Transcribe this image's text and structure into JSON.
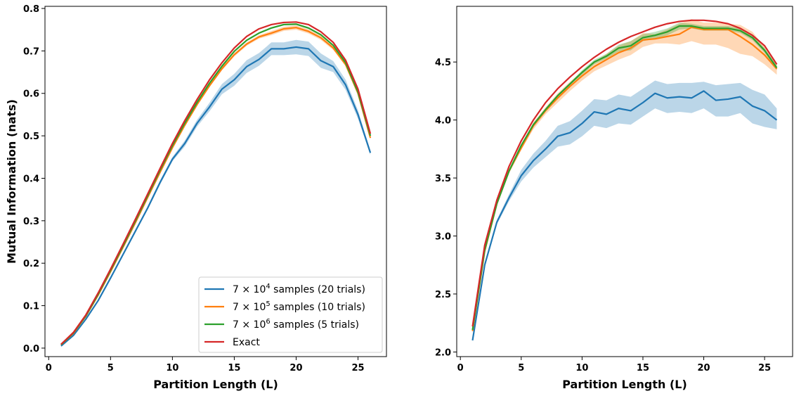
{
  "chart_data": [
    {
      "type": "line",
      "xlabel": "Partition Length (L)",
      "ylabel": "Mutual Information (nats)",
      "xlim": [
        -0.3,
        27.3
      ],
      "ylim": [
        -0.02,
        0.805
      ],
      "xticks": [
        0,
        5,
        10,
        15,
        20,
        25
      ],
      "yticks": [
        0.0,
        0.1,
        0.2,
        0.3,
        0.4,
        0.5,
        0.6,
        0.7,
        0.8
      ],
      "ytick_decimals": 1,
      "legend_position": "lower-right",
      "x": [
        1,
        2,
        3,
        4,
        5,
        6,
        7,
        8,
        9,
        10,
        11,
        12,
        13,
        14,
        15,
        16,
        17,
        18,
        19,
        20,
        21,
        22,
        23,
        24,
        25,
        26
      ],
      "series": [
        {
          "name_prefix": "7 × 10",
          "name_exp": "4",
          "name_suffix": " samples (20 trials)",
          "color": "#1f77b4",
          "values": [
            0.005,
            0.03,
            0.068,
            0.112,
            0.165,
            0.22,
            0.275,
            0.33,
            0.39,
            0.445,
            0.482,
            0.53,
            0.568,
            0.61,
            0.632,
            0.663,
            0.68,
            0.705,
            0.705,
            0.709,
            0.705,
            0.677,
            0.663,
            0.62,
            0.55,
            0.46
          ],
          "lower": [
            0.005,
            0.03,
            0.067,
            0.11,
            0.163,
            0.217,
            0.272,
            0.326,
            0.385,
            0.44,
            0.475,
            0.522,
            0.558,
            0.598,
            0.618,
            0.648,
            0.665,
            0.69,
            0.69,
            0.692,
            0.688,
            0.66,
            0.65,
            0.608,
            0.54,
            0.455
          ],
          "upper": [
            0.006,
            0.031,
            0.07,
            0.114,
            0.167,
            0.223,
            0.278,
            0.334,
            0.395,
            0.45,
            0.489,
            0.538,
            0.578,
            0.622,
            0.646,
            0.678,
            0.695,
            0.72,
            0.72,
            0.726,
            0.722,
            0.694,
            0.676,
            0.632,
            0.56,
            0.465
          ]
        },
        {
          "name_prefix": "7 × 10",
          "name_exp": "5",
          "name_suffix": " samples (10 trials)",
          "color": "#ff7f0e",
          "values": [
            0.008,
            0.035,
            0.075,
            0.125,
            0.18,
            0.237,
            0.295,
            0.355,
            0.414,
            0.472,
            0.525,
            0.574,
            0.618,
            0.658,
            0.691,
            0.716,
            0.733,
            0.742,
            0.752,
            0.755,
            0.746,
            0.731,
            0.707,
            0.668,
            0.6,
            0.495
          ],
          "lower": [
            0.008,
            0.035,
            0.074,
            0.124,
            0.179,
            0.236,
            0.294,
            0.353,
            0.412,
            0.47,
            0.522,
            0.571,
            0.615,
            0.654,
            0.687,
            0.712,
            0.729,
            0.737,
            0.747,
            0.75,
            0.741,
            0.726,
            0.702,
            0.664,
            0.596,
            0.492
          ],
          "upper": [
            0.009,
            0.036,
            0.076,
            0.126,
            0.181,
            0.238,
            0.296,
            0.357,
            0.416,
            0.474,
            0.528,
            0.577,
            0.621,
            0.662,
            0.695,
            0.72,
            0.737,
            0.747,
            0.757,
            0.76,
            0.751,
            0.736,
            0.712,
            0.672,
            0.604,
            0.498
          ]
        },
        {
          "name_prefix": "7 × 10",
          "name_exp": "6",
          "name_suffix": " samples (5 trials)",
          "color": "#2ca02c",
          "values": [
            0.008,
            0.036,
            0.076,
            0.127,
            0.183,
            0.24,
            0.299,
            0.359,
            0.419,
            0.477,
            0.53,
            0.579,
            0.624,
            0.664,
            0.699,
            0.725,
            0.742,
            0.754,
            0.762,
            0.763,
            0.754,
            0.738,
            0.713,
            0.672,
            0.603,
            0.5
          ],
          "lower": [
            0.008,
            0.036,
            0.076,
            0.126,
            0.182,
            0.239,
            0.298,
            0.358,
            0.418,
            0.476,
            0.529,
            0.578,
            0.623,
            0.663,
            0.698,
            0.723,
            0.74,
            0.752,
            0.76,
            0.761,
            0.752,
            0.736,
            0.711,
            0.67,
            0.601,
            0.498
          ],
          "upper": [
            0.009,
            0.037,
            0.077,
            0.128,
            0.184,
            0.241,
            0.3,
            0.36,
            0.42,
            0.478,
            0.531,
            0.58,
            0.625,
            0.665,
            0.7,
            0.727,
            0.744,
            0.756,
            0.764,
            0.765,
            0.756,
            0.74,
            0.715,
            0.674,
            0.605,
            0.502
          ]
        },
        {
          "name": "Exact",
          "color": "#d62728",
          "values": [
            0.009,
            0.037,
            0.078,
            0.13,
            0.186,
            0.244,
            0.303,
            0.363,
            0.423,
            0.482,
            0.536,
            0.586,
            0.632,
            0.672,
            0.707,
            0.734,
            0.752,
            0.762,
            0.767,
            0.768,
            0.762,
            0.745,
            0.72,
            0.678,
            0.61,
            0.505
          ]
        }
      ]
    },
    {
      "type": "line",
      "xlabel": "Partition Length (L)",
      "ylabel": "",
      "xlim": [
        -0.3,
        27.3
      ],
      "ylim": [
        1.96,
        4.98
      ],
      "xticks": [
        0,
        5,
        10,
        15,
        20,
        25
      ],
      "yticks": [
        2.0,
        2.5,
        3.0,
        3.5,
        4.0,
        4.5
      ],
      "ytick_decimals": 1,
      "x": [
        1,
        2,
        3,
        4,
        5,
        6,
        7,
        8,
        9,
        10,
        11,
        12,
        13,
        14,
        15,
        16,
        17,
        18,
        19,
        20,
        21,
        22,
        23,
        24,
        25,
        26
      ],
      "series": [
        {
          "color": "#1f77b4",
          "values": [
            2.1,
            2.75,
            3.12,
            3.33,
            3.52,
            3.65,
            3.75,
            3.86,
            3.89,
            3.97,
            4.07,
            4.05,
            4.1,
            4.08,
            4.15,
            4.23,
            4.19,
            4.2,
            4.19,
            4.25,
            4.17,
            4.18,
            4.2,
            4.12,
            4.08,
            4.0
          ],
          "lower": [
            2.1,
            2.74,
            3.1,
            3.3,
            3.47,
            3.59,
            3.68,
            3.77,
            3.79,
            3.86,
            3.95,
            3.93,
            3.97,
            3.96,
            4.03,
            4.1,
            4.06,
            4.07,
            4.06,
            4.1,
            4.03,
            4.03,
            4.06,
            3.97,
            3.94,
            3.92
          ],
          "upper": [
            2.11,
            2.76,
            3.14,
            3.36,
            3.57,
            3.71,
            3.82,
            3.95,
            3.99,
            4.08,
            4.18,
            4.17,
            4.22,
            4.2,
            4.27,
            4.34,
            4.31,
            4.32,
            4.32,
            4.33,
            4.3,
            4.31,
            4.32,
            4.26,
            4.22,
            4.1
          ]
        },
        {
          "color": "#ff7f0e",
          "values": [
            2.18,
            2.87,
            3.28,
            3.56,
            3.76,
            3.95,
            4.08,
            4.19,
            4.29,
            4.38,
            4.46,
            4.52,
            4.58,
            4.62,
            4.69,
            4.7,
            4.72,
            4.74,
            4.8,
            4.78,
            4.78,
            4.78,
            4.72,
            4.65,
            4.56,
            4.44
          ],
          "lower": [
            2.17,
            2.86,
            3.27,
            3.54,
            3.74,
            3.92,
            4.05,
            4.15,
            4.25,
            4.34,
            4.42,
            4.47,
            4.52,
            4.56,
            4.63,
            4.66,
            4.66,
            4.65,
            4.68,
            4.65,
            4.65,
            4.62,
            4.57,
            4.55,
            4.48,
            4.39
          ],
          "upper": [
            2.19,
            2.88,
            3.29,
            3.58,
            3.78,
            3.98,
            4.11,
            4.23,
            4.33,
            4.42,
            4.5,
            4.57,
            4.64,
            4.68,
            4.75,
            4.74,
            4.78,
            4.83,
            4.87,
            4.84,
            4.84,
            4.83,
            4.82,
            4.76,
            4.63,
            4.49
          ]
        },
        {
          "color": "#2ca02c",
          "values": [
            2.19,
            2.88,
            3.28,
            3.56,
            3.78,
            3.96,
            4.09,
            4.21,
            4.31,
            4.41,
            4.5,
            4.55,
            4.62,
            4.64,
            4.71,
            4.73,
            4.76,
            4.81,
            4.81,
            4.79,
            4.79,
            4.79,
            4.77,
            4.71,
            4.6,
            4.45
          ],
          "lower": [
            2.19,
            2.87,
            3.27,
            3.55,
            3.77,
            3.95,
            4.08,
            4.2,
            4.3,
            4.39,
            4.48,
            4.53,
            4.59,
            4.6,
            4.68,
            4.7,
            4.73,
            4.78,
            4.79,
            4.77,
            4.77,
            4.77,
            4.75,
            4.69,
            4.58,
            4.43
          ],
          "upper": [
            2.2,
            2.89,
            3.29,
            3.57,
            3.79,
            3.97,
            4.1,
            4.22,
            4.32,
            4.43,
            4.52,
            4.57,
            4.65,
            4.68,
            4.74,
            4.76,
            4.79,
            4.84,
            4.83,
            4.81,
            4.81,
            4.81,
            4.79,
            4.73,
            4.62,
            4.47
          ]
        },
        {
          "color": "#d62728",
          "values": [
            2.22,
            2.92,
            3.31,
            3.6,
            3.82,
            4.0,
            4.15,
            4.27,
            4.37,
            4.46,
            4.54,
            4.61,
            4.67,
            4.72,
            4.76,
            4.8,
            4.83,
            4.85,
            4.86,
            4.86,
            4.85,
            4.83,
            4.79,
            4.73,
            4.64,
            4.48
          ]
        }
      ]
    }
  ]
}
